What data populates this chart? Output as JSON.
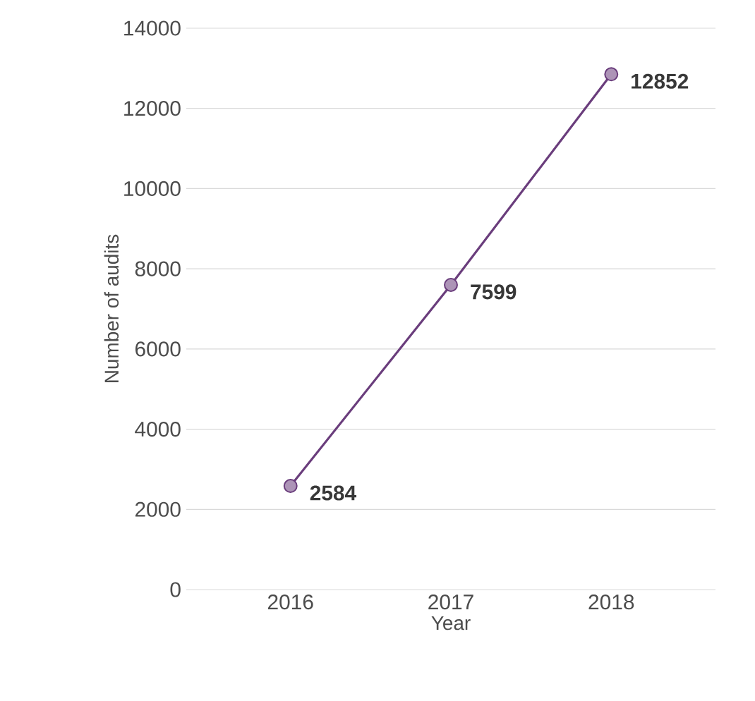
{
  "chart_data": {
    "type": "line",
    "xlabel": "Year",
    "ylabel": "Number of audits",
    "categories": [
      "2016",
      "2017",
      "2018"
    ],
    "series": [
      {
        "color": "#6a3d7c",
        "values": [
          2584,
          7599,
          12852
        ]
      }
    ],
    "ylim": [
      0,
      14000
    ],
    "yticks": [
      0,
      2000,
      4000,
      6000,
      8000,
      10000,
      12000,
      14000
    ],
    "grid": "y",
    "marker": "circle",
    "line_style": "solid",
    "data_labels": true
  }
}
